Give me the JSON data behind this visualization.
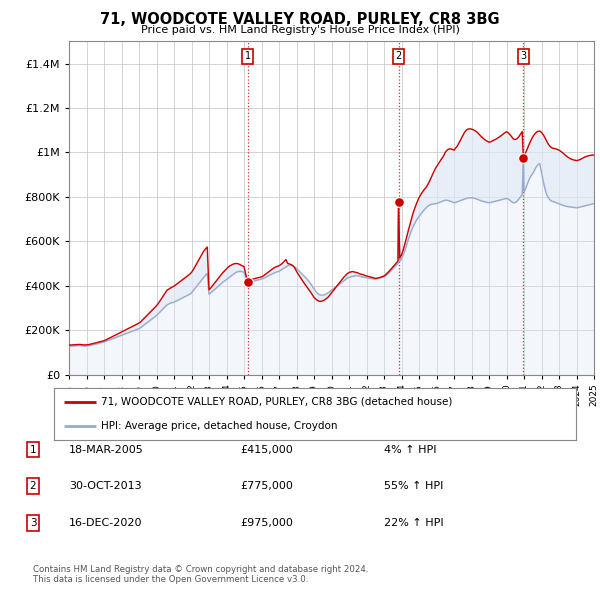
{
  "title": "71, WOODCOTE VALLEY ROAD, PURLEY, CR8 3BG",
  "subtitle": "Price paid vs. HM Land Registry's House Price Index (HPI)",
  "legend_line1": "71, WOODCOTE VALLEY ROAD, PURLEY, CR8 3BG (detached house)",
  "legend_line2": "HPI: Average price, detached house, Croydon",
  "footer1": "Contains HM Land Registry data © Crown copyright and database right 2024.",
  "footer2": "This data is licensed under the Open Government Licence v3.0.",
  "sales": [
    {
      "num": 1,
      "date": "18-MAR-2005",
      "price": 415000,
      "pct": "4%",
      "year_x": 2005.21
    },
    {
      "num": 2,
      "date": "30-OCT-2013",
      "price": 775000,
      "pct": "55%",
      "year_x": 2013.83
    },
    {
      "num": 3,
      "date": "16-DEC-2020",
      "price": 975000,
      "pct": "22%",
      "year_x": 2020.96
    }
  ],
  "hpi_x": [
    1995.0,
    1995.1,
    1995.2,
    1995.3,
    1995.4,
    1995.5,
    1995.6,
    1995.7,
    1995.8,
    1995.9,
    1996.0,
    1996.1,
    1996.2,
    1996.3,
    1996.4,
    1996.5,
    1996.6,
    1996.7,
    1996.8,
    1996.9,
    1997.0,
    1997.1,
    1997.2,
    1997.3,
    1997.4,
    1997.5,
    1997.6,
    1997.7,
    1997.8,
    1997.9,
    1998.0,
    1998.1,
    1998.2,
    1998.3,
    1998.4,
    1998.5,
    1998.6,
    1998.7,
    1998.8,
    1998.9,
    1999.0,
    1999.1,
    1999.2,
    1999.3,
    1999.4,
    1999.5,
    1999.6,
    1999.7,
    1999.8,
    1999.9,
    2000.0,
    2000.1,
    2000.2,
    2000.3,
    2000.4,
    2000.5,
    2000.6,
    2000.7,
    2000.8,
    2000.9,
    2001.0,
    2001.1,
    2001.2,
    2001.3,
    2001.4,
    2001.5,
    2001.6,
    2001.7,
    2001.8,
    2001.9,
    2002.0,
    2002.1,
    2002.2,
    2002.3,
    2002.4,
    2002.5,
    2002.6,
    2002.7,
    2002.8,
    2002.9,
    2003.0,
    2003.1,
    2003.2,
    2003.3,
    2003.4,
    2003.5,
    2003.6,
    2003.7,
    2003.8,
    2003.9,
    2004.0,
    2004.1,
    2004.2,
    2004.3,
    2004.4,
    2004.5,
    2004.6,
    2004.7,
    2004.8,
    2004.9,
    2005.0,
    2005.21,
    2005.4,
    2005.5,
    2005.6,
    2005.7,
    2005.8,
    2005.9,
    2006.0,
    2006.1,
    2006.2,
    2006.3,
    2006.4,
    2006.5,
    2006.6,
    2006.7,
    2006.8,
    2006.9,
    2007.0,
    2007.1,
    2007.2,
    2007.3,
    2007.4,
    2007.5,
    2007.6,
    2007.7,
    2007.8,
    2007.9,
    2008.0,
    2008.1,
    2008.2,
    2008.3,
    2008.4,
    2008.5,
    2008.6,
    2008.7,
    2008.8,
    2008.9,
    2009.0,
    2009.1,
    2009.2,
    2009.3,
    2009.4,
    2009.5,
    2009.6,
    2009.7,
    2009.8,
    2009.9,
    2010.0,
    2010.1,
    2010.2,
    2010.3,
    2010.4,
    2010.5,
    2010.6,
    2010.7,
    2010.8,
    2010.9,
    2011.0,
    2011.1,
    2011.2,
    2011.3,
    2011.4,
    2011.5,
    2011.6,
    2011.7,
    2011.8,
    2011.9,
    2012.0,
    2012.1,
    2012.2,
    2012.3,
    2012.4,
    2012.5,
    2012.6,
    2012.7,
    2012.8,
    2012.9,
    2013.0,
    2013.1,
    2013.2,
    2013.3,
    2013.4,
    2013.5,
    2013.6,
    2013.7,
    2013.8,
    2013.83,
    2013.9,
    2014.0,
    2014.1,
    2014.2,
    2014.3,
    2014.4,
    2014.5,
    2014.6,
    2014.7,
    2014.8,
    2014.9,
    2015.0,
    2015.1,
    2015.2,
    2015.3,
    2015.4,
    2015.5,
    2015.6,
    2015.7,
    2015.8,
    2015.9,
    2016.0,
    2016.1,
    2016.2,
    2016.3,
    2016.4,
    2016.5,
    2016.6,
    2016.7,
    2016.8,
    2016.9,
    2017.0,
    2017.1,
    2017.2,
    2017.3,
    2017.4,
    2017.5,
    2017.6,
    2017.7,
    2017.8,
    2017.9,
    2018.0,
    2018.1,
    2018.2,
    2018.3,
    2018.4,
    2018.5,
    2018.6,
    2018.7,
    2018.8,
    2018.9,
    2019.0,
    2019.1,
    2019.2,
    2019.3,
    2019.4,
    2019.5,
    2019.6,
    2019.7,
    2019.8,
    2019.9,
    2020.0,
    2020.1,
    2020.2,
    2020.3,
    2020.4,
    2020.5,
    2020.6,
    2020.7,
    2020.8,
    2020.9,
    2020.96,
    2021.0,
    2021.1,
    2021.2,
    2021.3,
    2021.4,
    2021.5,
    2021.6,
    2021.7,
    2021.8,
    2021.9,
    2022.0,
    2022.1,
    2022.2,
    2022.3,
    2022.4,
    2022.5,
    2022.6,
    2022.7,
    2022.8,
    2022.9,
    2023.0,
    2023.1,
    2023.2,
    2023.3,
    2023.4,
    2023.5,
    2023.6,
    2023.7,
    2023.8,
    2023.9,
    2024.0,
    2024.1,
    2024.2,
    2024.3,
    2024.4,
    2024.5,
    2024.6,
    2024.7,
    2024.8,
    2024.9,
    2025.0
  ],
  "hpi_y": [
    128000,
    128500,
    129000,
    129500,
    130000,
    130500,
    131000,
    130000,
    129000,
    128500,
    129000,
    130000,
    131000,
    133000,
    135000,
    137000,
    139000,
    141000,
    143000,
    145000,
    147000,
    150000,
    153000,
    156000,
    159000,
    162000,
    165000,
    168000,
    171000,
    174000,
    177000,
    180000,
    183000,
    186000,
    189000,
    192000,
    195000,
    198000,
    201000,
    204000,
    207000,
    212000,
    218000,
    224000,
    230000,
    236000,
    242000,
    248000,
    254000,
    260000,
    266000,
    274000,
    282000,
    290000,
    298000,
    306000,
    314000,
    318000,
    322000,
    324000,
    326000,
    330000,
    334000,
    338000,
    342000,
    346000,
    350000,
    354000,
    358000,
    362000,
    368000,
    378000,
    388000,
    398000,
    408000,
    418000,
    428000,
    438000,
    448000,
    455000,
    362000,
    368000,
    375000,
    382000,
    389000,
    396000,
    403000,
    410000,
    417000,
    422000,
    428000,
    434000,
    440000,
    446000,
    452000,
    458000,
    462000,
    464000,
    465000,
    463000,
    461000,
    415000,
    418000,
    420000,
    422000,
    424000,
    426000,
    428000,
    430000,
    433000,
    437000,
    441000,
    445000,
    449000,
    453000,
    457000,
    460000,
    463000,
    465000,
    470000,
    475000,
    480000,
    485000,
    490000,
    493000,
    492000,
    489000,
    484000,
    478000,
    470000,
    462000,
    454000,
    446000,
    438000,
    430000,
    420000,
    410000,
    398000,
    386000,
    375000,
    366000,
    360000,
    358000,
    358000,
    360000,
    363000,
    368000,
    374000,
    380000,
    386000,
    392000,
    398000,
    404000,
    410000,
    416000,
    422000,
    428000,
    434000,
    438000,
    440000,
    442000,
    444000,
    446000,
    445000,
    443000,
    441000,
    439000,
    438000,
    436000,
    434000,
    433000,
    432000,
    431000,
    430000,
    432000,
    434000,
    436000,
    438000,
    440000,
    445000,
    452000,
    460000,
    468000,
    476000,
    484000,
    492000,
    500000,
    775000,
    510000,
    520000,
    540000,
    560000,
    585000,
    610000,
    635000,
    655000,
    672000,
    688000,
    700000,
    712000,
    722000,
    732000,
    742000,
    750000,
    758000,
    763000,
    766000,
    768000,
    769000,
    770000,
    773000,
    776000,
    779000,
    782000,
    785000,
    785000,
    783000,
    780000,
    777000,
    774000,
    775000,
    778000,
    781000,
    784000,
    787000,
    790000,
    793000,
    795000,
    796000,
    796000,
    795000,
    793000,
    790000,
    787000,
    784000,
    781000,
    779000,
    777000,
    775000,
    774000,
    775000,
    777000,
    779000,
    781000,
    783000,
    785000,
    787000,
    789000,
    791000,
    793000,
    790000,
    785000,
    778000,
    773000,
    775000,
    780000,
    790000,
    800000,
    810000,
    975000,
    820000,
    840000,
    860000,
    880000,
    895000,
    905000,
    920000,
    935000,
    945000,
    950000,
    910000,
    870000,
    835000,
    810000,
    795000,
    785000,
    780000,
    778000,
    775000,
    772000,
    769000,
    766000,
    763000,
    760000,
    758000,
    756000,
    755000,
    754000,
    753000,
    752000,
    751000,
    752000,
    754000,
    756000,
    758000,
    760000,
    762000,
    764000,
    766000,
    768000,
    770000
  ],
  "red_x": [
    1995.0,
    1995.1,
    1995.2,
    1995.3,
    1995.4,
    1995.5,
    1995.6,
    1995.7,
    1995.8,
    1995.9,
    1996.0,
    1996.1,
    1996.2,
    1996.3,
    1996.4,
    1996.5,
    1996.6,
    1996.7,
    1996.8,
    1996.9,
    1997.0,
    1997.1,
    1997.2,
    1997.3,
    1997.4,
    1997.5,
    1997.6,
    1997.7,
    1997.8,
    1997.9,
    1998.0,
    1998.1,
    1998.2,
    1998.3,
    1998.4,
    1998.5,
    1998.6,
    1998.7,
    1998.8,
    1998.9,
    1999.0,
    1999.1,
    1999.2,
    1999.3,
    1999.4,
    1999.5,
    1999.6,
    1999.7,
    1999.8,
    1999.9,
    2000.0,
    2000.1,
    2000.2,
    2000.3,
    2000.4,
    2000.5,
    2000.6,
    2000.7,
    2000.8,
    2000.9,
    2001.0,
    2001.1,
    2001.2,
    2001.3,
    2001.4,
    2001.5,
    2001.6,
    2001.7,
    2001.8,
    2001.9,
    2002.0,
    2002.1,
    2002.2,
    2002.3,
    2002.4,
    2002.5,
    2002.6,
    2002.7,
    2002.8,
    2002.9,
    2003.0,
    2003.1,
    2003.2,
    2003.3,
    2003.4,
    2003.5,
    2003.6,
    2003.7,
    2003.8,
    2003.9,
    2004.0,
    2004.1,
    2004.2,
    2004.3,
    2004.4,
    2004.5,
    2004.6,
    2004.7,
    2004.8,
    2004.9,
    2005.0,
    2005.21,
    2005.4,
    2005.5,
    2005.6,
    2005.7,
    2005.8,
    2005.9,
    2006.0,
    2006.1,
    2006.2,
    2006.3,
    2006.4,
    2006.5,
    2006.6,
    2006.7,
    2006.8,
    2006.9,
    2007.0,
    2007.1,
    2007.2,
    2007.3,
    2007.4,
    2007.5,
    2007.6,
    2007.7,
    2007.8,
    2007.9,
    2008.0,
    2008.1,
    2008.2,
    2008.3,
    2008.4,
    2008.5,
    2008.6,
    2008.7,
    2008.8,
    2008.9,
    2009.0,
    2009.1,
    2009.2,
    2009.3,
    2009.4,
    2009.5,
    2009.6,
    2009.7,
    2009.8,
    2009.9,
    2010.0,
    2010.1,
    2010.2,
    2010.3,
    2010.4,
    2010.5,
    2010.6,
    2010.7,
    2010.8,
    2010.9,
    2011.0,
    2011.1,
    2011.2,
    2011.3,
    2011.4,
    2011.5,
    2011.6,
    2011.7,
    2011.8,
    2011.9,
    2012.0,
    2012.1,
    2012.2,
    2012.3,
    2012.4,
    2012.5,
    2012.6,
    2012.7,
    2012.8,
    2012.9,
    2013.0,
    2013.1,
    2013.2,
    2013.3,
    2013.4,
    2013.5,
    2013.6,
    2013.7,
    2013.8,
    2013.83,
    2013.9,
    2014.0,
    2014.1,
    2014.2,
    2014.3,
    2014.4,
    2014.5,
    2014.6,
    2014.7,
    2014.8,
    2014.9,
    2015.0,
    2015.1,
    2015.2,
    2015.3,
    2015.4,
    2015.5,
    2015.6,
    2015.7,
    2015.8,
    2015.9,
    2016.0,
    2016.1,
    2016.2,
    2016.3,
    2016.4,
    2016.5,
    2016.6,
    2016.7,
    2016.8,
    2016.9,
    2017.0,
    2017.1,
    2017.2,
    2017.3,
    2017.4,
    2017.5,
    2017.6,
    2017.7,
    2017.8,
    2017.9,
    2018.0,
    2018.1,
    2018.2,
    2018.3,
    2018.4,
    2018.5,
    2018.6,
    2018.7,
    2018.8,
    2018.9,
    2019.0,
    2019.1,
    2019.2,
    2019.3,
    2019.4,
    2019.5,
    2019.6,
    2019.7,
    2019.8,
    2019.9,
    2020.0,
    2020.1,
    2020.2,
    2020.3,
    2020.4,
    2020.5,
    2020.6,
    2020.7,
    2020.8,
    2020.9,
    2020.96,
    2021.0,
    2021.1,
    2021.2,
    2021.3,
    2021.4,
    2021.5,
    2021.6,
    2021.7,
    2021.8,
    2021.9,
    2022.0,
    2022.1,
    2022.2,
    2022.3,
    2022.4,
    2022.5,
    2022.6,
    2022.7,
    2022.8,
    2022.9,
    2023.0,
    2023.1,
    2023.2,
    2023.3,
    2023.4,
    2023.5,
    2023.6,
    2023.7,
    2023.8,
    2023.9,
    2024.0,
    2024.1,
    2024.2,
    2024.3,
    2024.4,
    2024.5,
    2024.6,
    2024.7,
    2024.8,
    2024.9,
    2025.0
  ],
  "red_y": [
    133000,
    133500,
    134000,
    134500,
    135000,
    135500,
    136000,
    135000,
    134000,
    133500,
    134000,
    135000,
    136500,
    138500,
    140500,
    142500,
    144500,
    146500,
    148500,
    150500,
    152500,
    156000,
    160000,
    164000,
    168000,
    172000,
    176000,
    180000,
    184000,
    188000,
    192000,
    196000,
    200000,
    204000,
    208000,
    212000,
    216000,
    220000,
    224000,
    228000,
    232000,
    238000,
    246000,
    254000,
    262000,
    270000,
    278000,
    286000,
    294000,
    302000,
    310000,
    320000,
    332000,
    344000,
    356000,
    368000,
    380000,
    385000,
    390000,
    394000,
    398000,
    404000,
    410000,
    416000,
    422000,
    428000,
    434000,
    440000,
    446000,
    452000,
    460000,
    472000,
    486000,
    500000,
    514000,
    528000,
    542000,
    556000,
    566000,
    574000,
    382000,
    390000,
    400000,
    410000,
    420000,
    430000,
    440000,
    450000,
    460000,
    468000,
    476000,
    484000,
    490000,
    494000,
    498000,
    500000,
    500000,
    498000,
    494000,
    490000,
    486000,
    415000,
    425000,
    430000,
    432000,
    434000,
    436000,
    438000,
    440000,
    444000,
    450000,
    456000,
    462000,
    468000,
    474000,
    480000,
    484000,
    487000,
    490000,
    495000,
    502000,
    510000,
    518000,
    500000,
    498000,
    495000,
    490000,
    480000,
    465000,
    452000,
    440000,
    428000,
    416000,
    405000,
    394000,
    383000,
    372000,
    360000,
    348000,
    340000,
    334000,
    330000,
    330000,
    332000,
    336000,
    342000,
    348000,
    358000,
    368000,
    378000,
    388000,
    398000,
    408000,
    418000,
    428000,
    438000,
    446000,
    454000,
    460000,
    462000,
    464000,
    462000,
    460000,
    458000,
    454000,
    452000,
    450000,
    447000,
    444000,
    442000,
    440000,
    438000,
    436000,
    433000,
    434000,
    436000,
    438000,
    441000,
    444000,
    450000,
    458000,
    466000,
    475000,
    484000,
    493000,
    502000,
    512000,
    775000,
    525000,
    538000,
    562000,
    590000,
    620000,
    652000,
    680000,
    710000,
    736000,
    758000,
    778000,
    796000,
    810000,
    822000,
    833000,
    842000,
    855000,
    870000,
    888000,
    905000,
    922000,
    936000,
    948000,
    960000,
    972000,
    984000,
    1000000,
    1010000,
    1015000,
    1016000,
    1014000,
    1010000,
    1020000,
    1030000,
    1045000,
    1060000,
    1075000,
    1090000,
    1100000,
    1105000,
    1106000,
    1105000,
    1102000,
    1098000,
    1092000,
    1085000,
    1076000,
    1068000,
    1061000,
    1055000,
    1050000,
    1046000,
    1048000,
    1052000,
    1056000,
    1060000,
    1065000,
    1070000,
    1076000,
    1082000,
    1088000,
    1093000,
    1088000,
    1080000,
    1070000,
    1060000,
    1058000,
    1062000,
    1070000,
    1082000,
    1094000,
    975000,
    985000,
    1000000,
    1018000,
    1038000,
    1055000,
    1070000,
    1082000,
    1090000,
    1095000,
    1096000,
    1090000,
    1080000,
    1066000,
    1050000,
    1036000,
    1026000,
    1020000,
    1018000,
    1016000,
    1014000,
    1010000,
    1005000,
    999000,
    992000,
    985000,
    979000,
    974000,
    970000,
    967000,
    965000,
    963000,
    965000,
    968000,
    972000,
    976000,
    980000,
    983000,
    985000,
    987000,
    988000,
    988000
  ],
  "ylim": [
    0,
    1500000
  ],
  "xlim": [
    1995,
    2025
  ],
  "red_color": "#cc0000",
  "blue_color": "#99aacc",
  "fill_color": "#dde8f5",
  "dashed_color": "#cc3333",
  "grid_color": "#cccccc",
  "bg_color": "#ffffff"
}
